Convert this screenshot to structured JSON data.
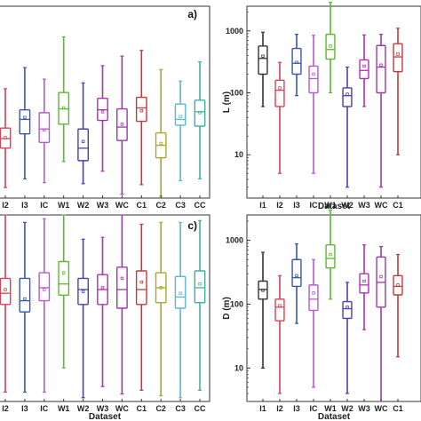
{
  "chart_data": [
    {
      "type": "box",
      "panel_label": "a)",
      "xlabel": "",
      "ylabel": "",
      "categories": [
        "I2",
        "I3",
        "IC",
        "W1",
        "W2",
        "W3",
        "WC",
        "C1",
        "C2",
        "C3",
        "CC"
      ],
      "colors": [
        "#d94055",
        "#3a55b5",
        "#b55ad0",
        "#5cb82e",
        "#4a3fb0",
        "#b030b0",
        "#9a3aa8",
        "#c23a3a",
        "#a8a82a",
        "#5ab8d0",
        "#40b0a0"
      ],
      "boxes": [
        {
          "min": 5.5,
          "q1": 26,
          "median": 31,
          "q3": 36.5,
          "max": 57
        },
        {
          "min": 10,
          "q1": 33.5,
          "median": 41,
          "q3": 46,
          "max": 68
        },
        {
          "min": 8,
          "q1": 29,
          "median": 36,
          "q3": 44.5,
          "max": 62
        },
        {
          "min": 19,
          "q1": 38.5,
          "median": 46.5,
          "q3": 55,
          "max": 84
        },
        {
          "min": 7.5,
          "q1": 19.5,
          "median": 26,
          "q3": 36,
          "max": 60
        },
        {
          "min": 14,
          "q1": 40.5,
          "median": 46,
          "q3": 52,
          "max": 69
        },
        {
          "min": 2,
          "q1": 30,
          "median": 37,
          "q3": 46.5,
          "max": 74
        },
        {
          "min": 7,
          "q1": 40,
          "median": 47,
          "q3": 52.5,
          "max": 77
        },
        {
          "min": 1,
          "q1": 21,
          "median": 27.5,
          "q3": 34,
          "max": 67
        },
        {
          "min": 9,
          "q1": 38,
          "median": 41,
          "q3": 49,
          "max": 61
        },
        {
          "min": 10,
          "q1": 37.5,
          "median": 45,
          "q3": 51,
          "max": 71
        }
      ],
      "means": [
        31.5,
        42,
        35.5,
        47,
        29.5,
        45,
        38.5,
        45.5,
        28.5,
        42.5,
        44.5
      ],
      "ylim": [
        0,
        100
      ]
    },
    {
      "type": "box",
      "panel_label": "",
      "xlabel": "Dataset",
      "ylabel": "L (m)",
      "yscale": "log",
      "ylim": [
        2,
        2500
      ],
      "yticks": [
        10,
        100,
        1000
      ],
      "categories": [
        "I1",
        "I2",
        "I3",
        "IC",
        "W1",
        "W2",
        "W3",
        "WC",
        "C1"
      ],
      "colors": [
        "#333333",
        "#d94055",
        "#3a55b5",
        "#b55ad0",
        "#5cb82e",
        "#4a3fb0",
        "#b030b0",
        "#9a3aa8",
        "#c23a3a"
      ],
      "boxes": [
        {
          "min": 60,
          "q1": 200,
          "median": 360,
          "q3": 570,
          "max": 950
        },
        {
          "min": 5,
          "q1": 60,
          "median": 110,
          "q3": 160,
          "max": 310
        },
        {
          "min": 90,
          "q1": 200,
          "median": 300,
          "q3": 520,
          "max": 880
        },
        {
          "min": 5,
          "q1": 100,
          "median": 170,
          "q3": 270,
          "max": 850
        },
        {
          "min": 100,
          "q1": 350,
          "median": 500,
          "q3": 880,
          "max": 2900
        },
        {
          "min": 3,
          "q1": 60,
          "median": 90,
          "q3": 120,
          "max": 260
        },
        {
          "min": 60,
          "q1": 170,
          "median": 230,
          "q3": 340,
          "max": 860
        },
        {
          "min": 3,
          "q1": 100,
          "median": 260,
          "q3": 580,
          "max": 880
        },
        {
          "min": 10,
          "q1": 220,
          "median": 380,
          "q3": 620,
          "max": 1100
        }
      ],
      "means": [
        390,
        120,
        310,
        200,
        570,
        95,
        270,
        280,
        420
      ]
    },
    {
      "type": "box",
      "panel_label": "c)",
      "xlabel": "Dataset",
      "ylabel": "",
      "categories": [
        "I2",
        "I3",
        "IC",
        "W1",
        "W2",
        "W3",
        "WC",
        "C1",
        "C2",
        "C3",
        "CC"
      ],
      "colors": [
        "#d94055",
        "#3a55b5",
        "#b55ad0",
        "#5cb82e",
        "#4a3fb0",
        "#b030b0",
        "#9a3aa8",
        "#c23a3a",
        "#a8a82a",
        "#5ab8d0",
        "#40b0a0"
      ],
      "boxes": [
        {
          "min": 5,
          "q1": 52,
          "median": 58,
          "q3": 66,
          "max": 100
        },
        {
          "min": 5,
          "q1": 48,
          "median": 54,
          "q3": 66,
          "max": 96
        },
        {
          "min": 5,
          "q1": 54,
          "median": 61,
          "q3": 69,
          "max": 98
        },
        {
          "min": 18,
          "q1": 57,
          "median": 63,
          "q3": 75,
          "max": 100
        },
        {
          "min": 2,
          "q1": 52,
          "median": 60,
          "q3": 66,
          "max": 87
        },
        {
          "min": 8,
          "q1": 52,
          "median": 60,
          "q3": 68,
          "max": 88
        },
        {
          "min": 4,
          "q1": 50,
          "median": 60,
          "q3": 72,
          "max": 100
        },
        {
          "min": 6,
          "q1": 52,
          "median": 60,
          "q3": 70,
          "max": 95
        },
        {
          "min": 3,
          "q1": 53,
          "median": 61,
          "q3": 69,
          "max": 96
        },
        {
          "min": 2,
          "q1": 50,
          "median": 56,
          "q3": 67,
          "max": 96
        },
        {
          "min": 6,
          "q1": 53,
          "median": 61,
          "q3": 70,
          "max": 97
        }
      ],
      "means": [
        60,
        55,
        60,
        69,
        59,
        61,
        66,
        64,
        61,
        58,
        63
      ],
      "ylim": [
        0,
        100
      ]
    },
    {
      "type": "box",
      "panel_label": "",
      "xlabel": "Dataset",
      "ylabel": "D (m)",
      "yscale": "log",
      "ylim": [
        3,
        2500
      ],
      "yticks": [
        10,
        100,
        1000
      ],
      "categories": [
        "I1",
        "I2",
        "I3",
        "IC",
        "W1",
        "W2",
        "W3",
        "WC",
        "C1"
      ],
      "colors": [
        "#333333",
        "#d94055",
        "#3a55b5",
        "#b55ad0",
        "#5cb82e",
        "#4a3fb0",
        "#b030b0",
        "#9a3aa8",
        "#c23a3a"
      ],
      "boxes": [
        {
          "min": 10,
          "q1": 120,
          "median": 170,
          "q3": 230,
          "max": 650
        },
        {
          "min": 4,
          "q1": 55,
          "median": 90,
          "q3": 120,
          "max": 280
        },
        {
          "min": 50,
          "q1": 190,
          "median": 260,
          "q3": 500,
          "max": 880
        },
        {
          "min": 5,
          "q1": 80,
          "median": 120,
          "q3": 200,
          "max": 500
        },
        {
          "min": 120,
          "q1": 370,
          "median": 520,
          "q3": 850,
          "max": 3000
        },
        {
          "min": 4,
          "q1": 60,
          "median": 85,
          "q3": 110,
          "max": 220
        },
        {
          "min": 40,
          "q1": 150,
          "median": 200,
          "q3": 300,
          "max": 850
        },
        {
          "min": 3,
          "q1": 90,
          "median": 220,
          "q3": 550,
          "max": 800
        },
        {
          "min": 15,
          "q1": 140,
          "median": 190,
          "q3": 280,
          "max": 600
        }
      ],
      "means": [
        165,
        95,
        280,
        150,
        600,
        90,
        230,
        270,
        200
      ]
    }
  ]
}
